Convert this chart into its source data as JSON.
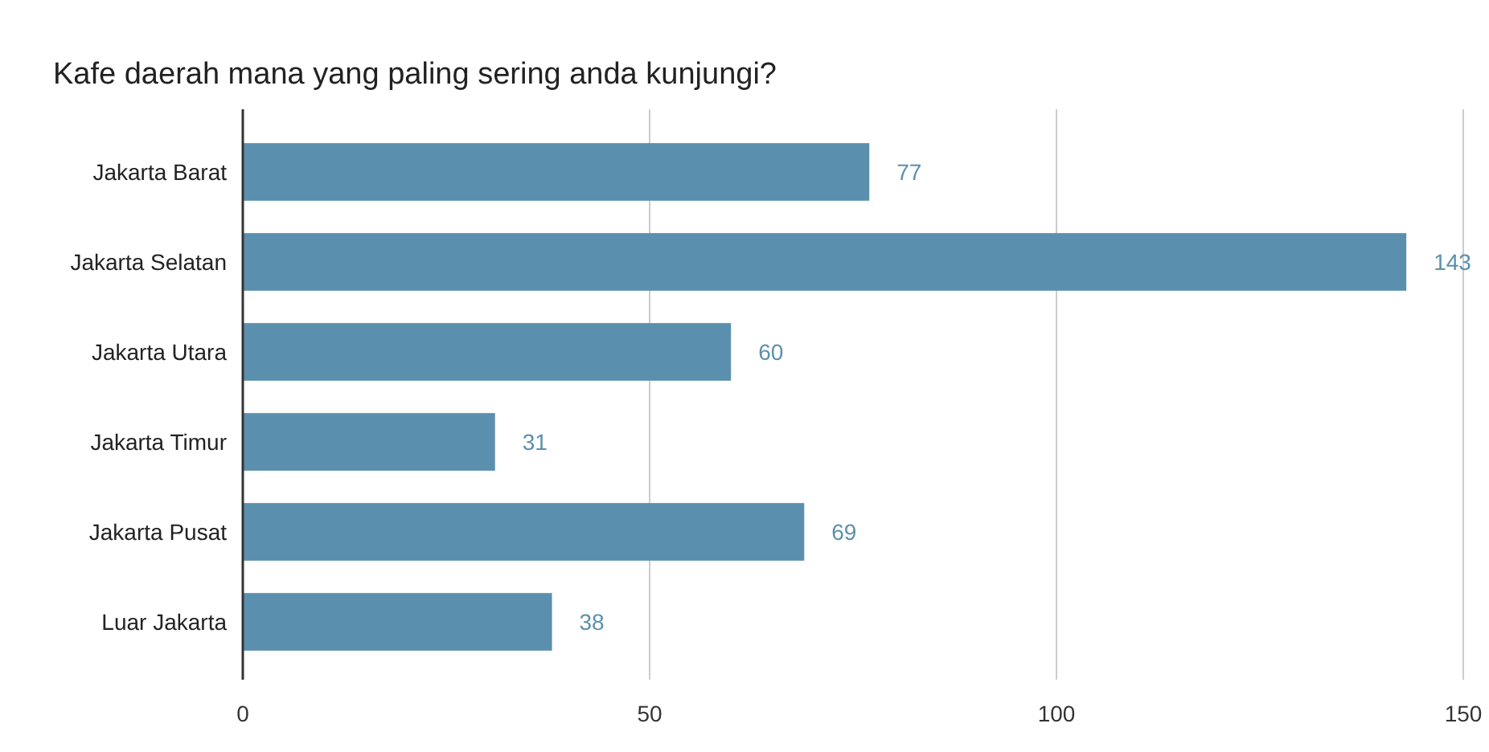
{
  "chart_data": {
    "type": "bar",
    "orientation": "horizontal",
    "title": "Kafe daerah mana yang paling sering anda kunjungi?",
    "categories": [
      "Jakarta Barat",
      "Jakarta Selatan",
      "Jakarta Utara",
      "Jakarta Timur",
      "Jakarta Pusat",
      "Luar Jakarta"
    ],
    "values": [
      77,
      143,
      60,
      31,
      69,
      38
    ],
    "color": "#5a90ad",
    "xlim": [
      0,
      150
    ],
    "xticks": [
      0,
      50,
      100,
      150
    ],
    "grid": "x",
    "data_labels": true
  }
}
